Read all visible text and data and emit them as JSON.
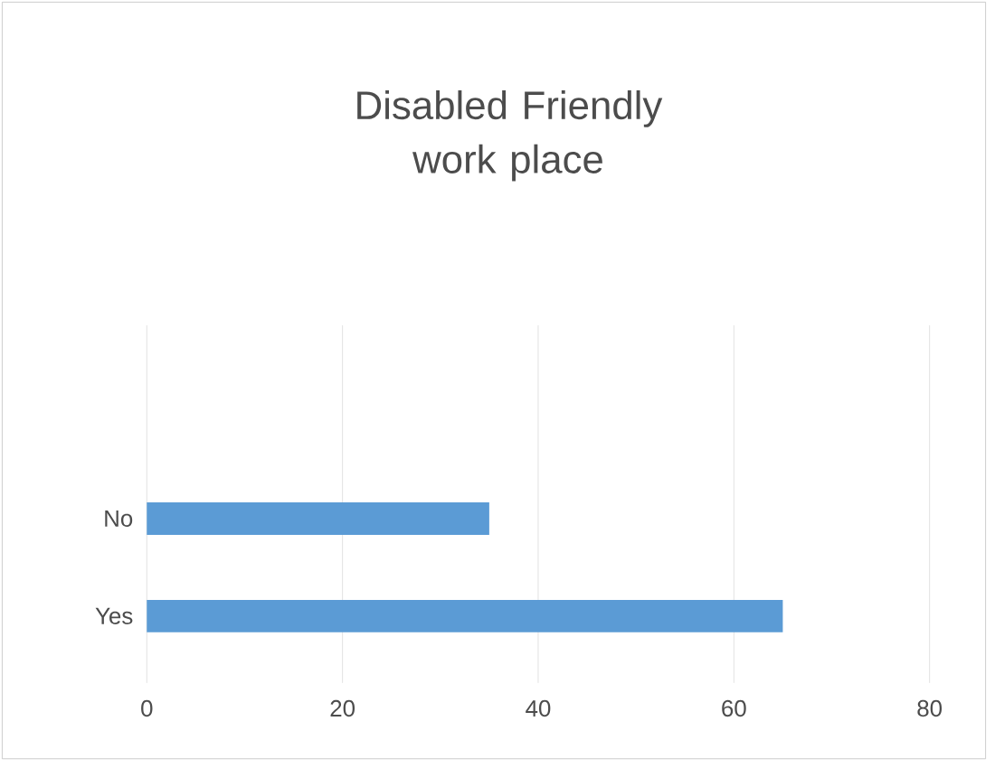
{
  "chart_data": {
    "type": "bar",
    "orientation": "horizontal",
    "title": "Disabled Friendly work place",
    "categories": [
      "No",
      "Yes"
    ],
    "values": [
      35,
      65
    ],
    "color": "#5b9bd5",
    "xlim": [
      0,
      80
    ],
    "xticks": [
      0,
      20,
      40,
      60,
      80
    ],
    "grid": "x"
  }
}
